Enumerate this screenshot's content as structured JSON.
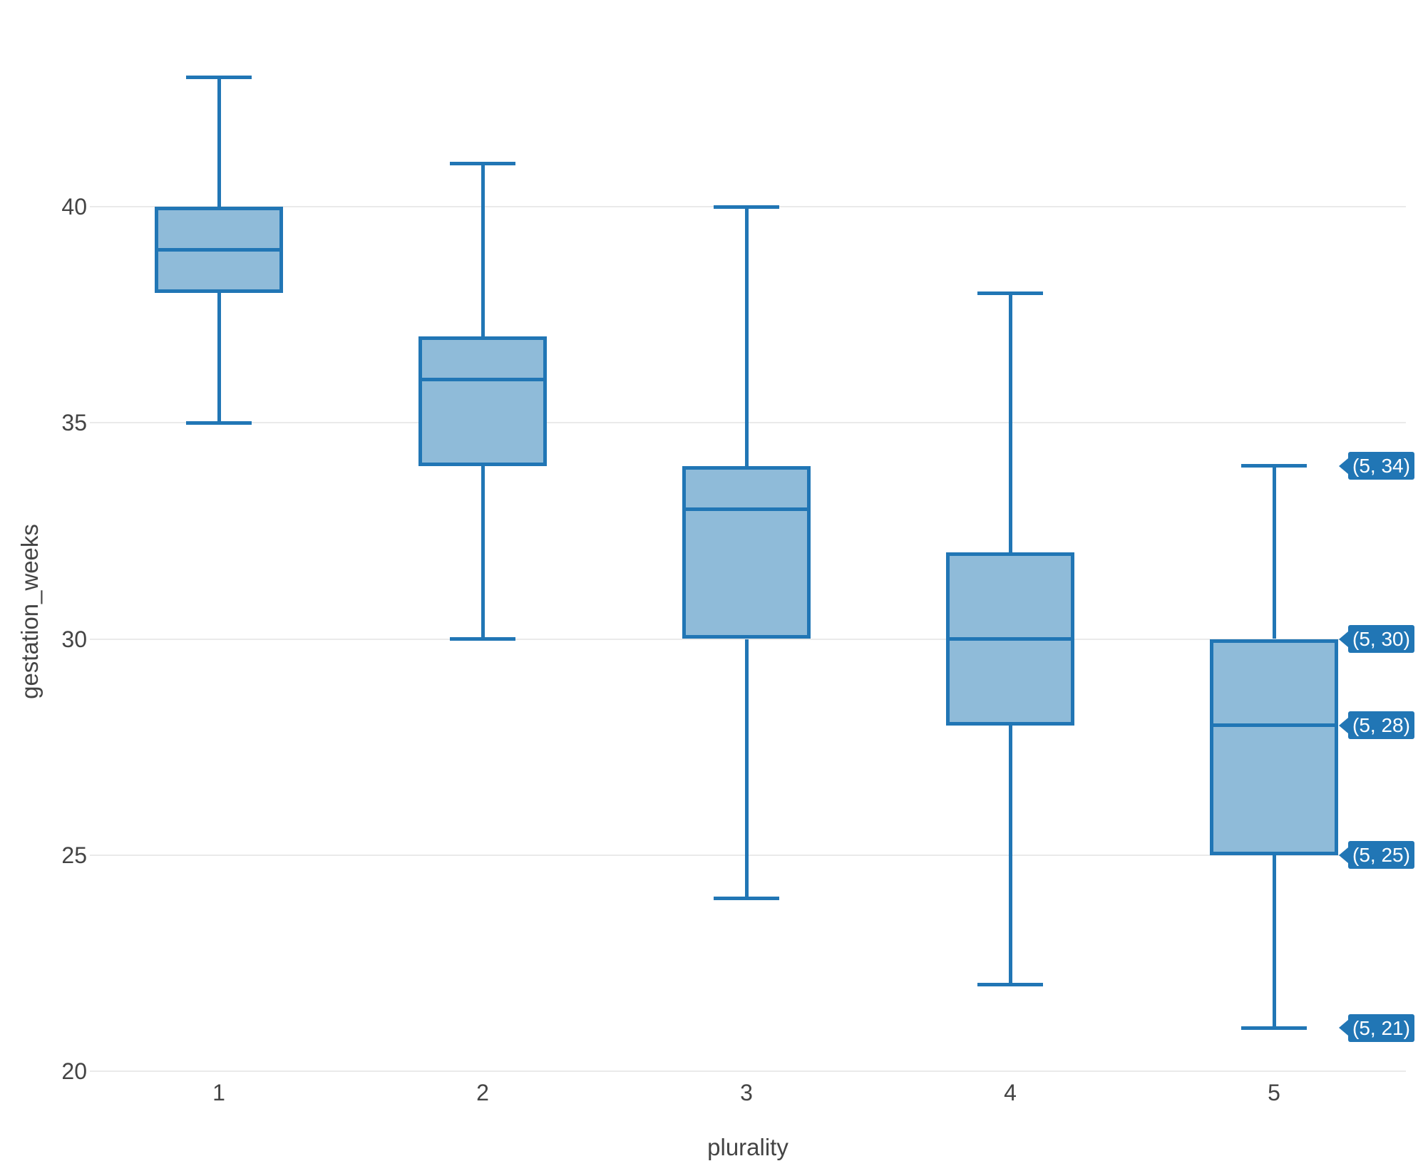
{
  "chart_data": {
    "type": "box",
    "title": "",
    "xlabel": "plurality",
    "ylabel": "gestation_weeks",
    "x_ticks": [
      "1",
      "2",
      "3",
      "4",
      "5"
    ],
    "y_ticks": [
      40,
      35,
      30,
      25,
      20
    ],
    "ylim": [
      19.2,
      44.8
    ],
    "grid": "horizontal-only",
    "legend": "none",
    "categories": [
      1,
      2,
      3,
      4,
      5
    ],
    "boxes": [
      {
        "category": 1,
        "whisker_low": 35,
        "q1": 38,
        "median": 39,
        "q3": 40,
        "whisker_high": 43
      },
      {
        "category": 2,
        "whisker_low": 30,
        "q1": 34,
        "median": 36,
        "q3": 37,
        "whisker_high": 41
      },
      {
        "category": 3,
        "whisker_low": 24,
        "q1": 30,
        "median": 33,
        "q3": 34,
        "whisker_high": 40
      },
      {
        "category": 4,
        "whisker_low": 22,
        "q1": 28,
        "median": 30,
        "q3": 32,
        "whisker_high": 38
      },
      {
        "category": 5,
        "whisker_low": 21,
        "q1": 25,
        "median": 28,
        "q3": 30,
        "whisker_high": 34
      }
    ],
    "hover_labels": [
      {
        "text": "(5, 34)",
        "x": 5,
        "y": 34
      },
      {
        "text": "(5, 30)",
        "x": 5,
        "y": 30
      },
      {
        "text": "(5, 28)",
        "x": 5,
        "y": 28
      },
      {
        "text": "(5, 25)",
        "x": 5,
        "y": 25
      },
      {
        "text": "(5, 21)",
        "x": 5,
        "y": 21
      }
    ],
    "colors": {
      "line": "#2176b5",
      "box_fill": "#8fbbd9",
      "hover_bg": "#2176b5",
      "hover_text": "#ffffff",
      "grid": "#eaeaea",
      "tick_text": "#444444"
    }
  }
}
